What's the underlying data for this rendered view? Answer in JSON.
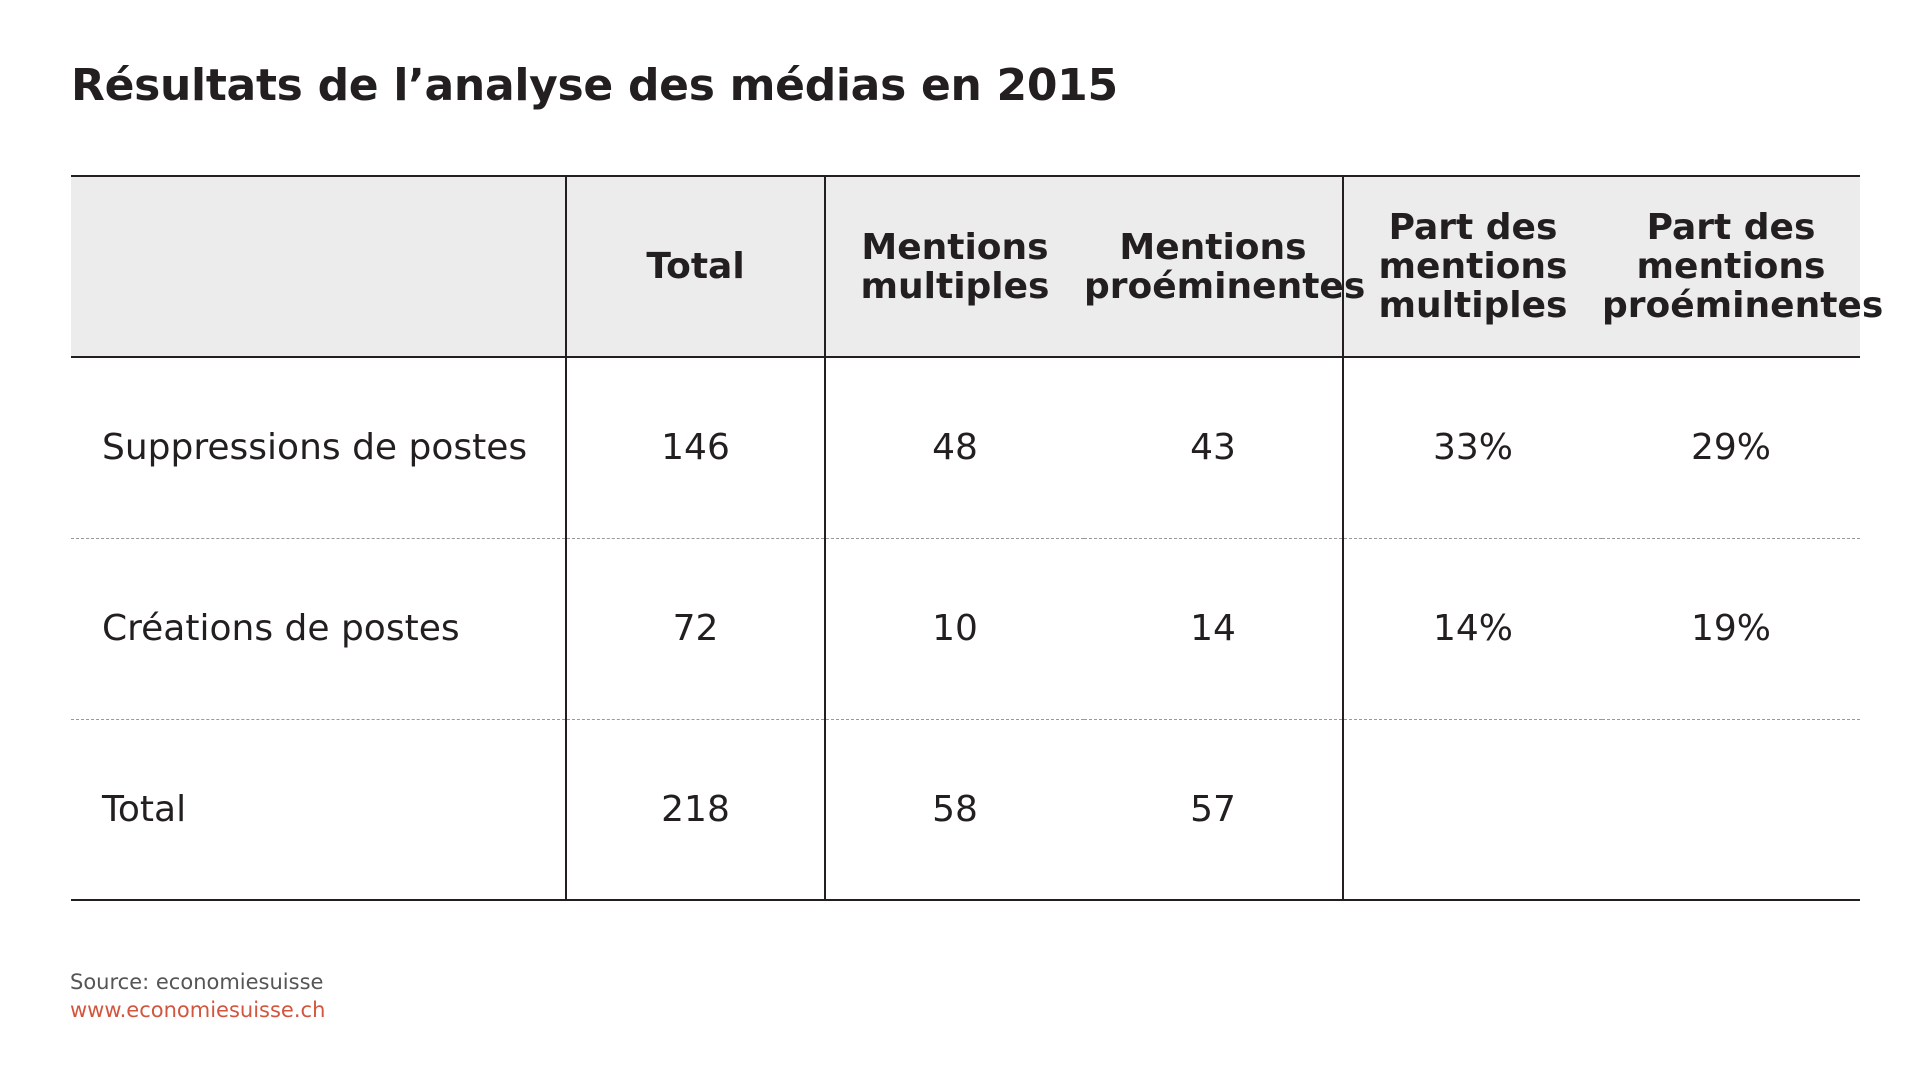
{
  "title": "Résultats de l’analyse des médias en 2015",
  "table": {
    "headers": [
      "",
      "Total",
      "Mentions\nmultiples",
      "Mentions\nproéminentes",
      "Part des\nmentions\nmultiples",
      "Part des\nmentions\nproéminentes"
    ],
    "rows": [
      {
        "label": "Suppressions de postes",
        "total": "146",
        "mentions_multiples": "48",
        "mentions_proeminentes": "43",
        "part_multiples": "33%",
        "part_proeminentes": "29%"
      },
      {
        "label": "Créations de postes",
        "total": "72",
        "mentions_multiples": "10",
        "mentions_proeminentes": "14",
        "part_multiples": "14%",
        "part_proeminentes": "19%"
      },
      {
        "label": "Total",
        "total": "218",
        "mentions_multiples": "58",
        "mentions_proeminentes": "57",
        "part_multiples": "",
        "part_proeminentes": ""
      }
    ]
  },
  "footer": {
    "source": "Source: economiesuisse",
    "website": "www.economiesuisse.ch"
  },
  "colors": {
    "header_bg": "#ececec",
    "text": "#231f20",
    "link": "#d2563e",
    "source_text": "#555555"
  }
}
